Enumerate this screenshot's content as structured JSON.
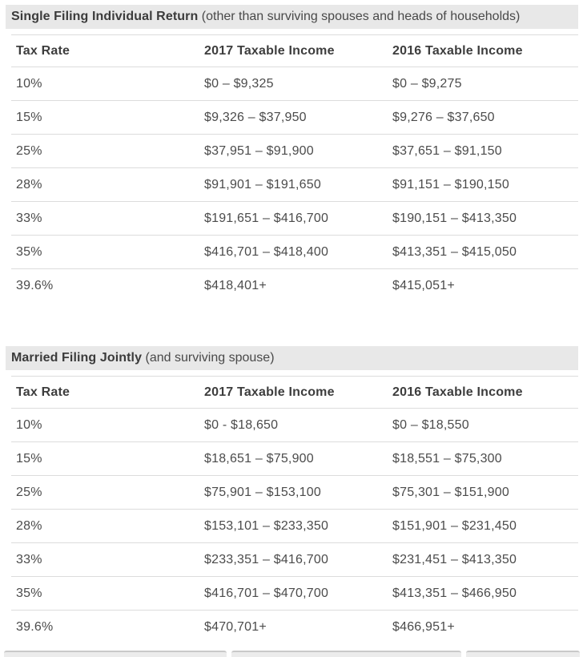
{
  "colors": {
    "band_bg": "#e8e8e8",
    "title_text": "#3b3b3b",
    "header_text": "#3d3d3d",
    "body_text": "#4b4b4b",
    "divider": "#dcdcdc",
    "bottom_box_bg": "#ececec",
    "bottom_box_border": "#c9c9c9"
  },
  "tables": [
    {
      "title_bold": "Single Filing Individual Return",
      "title_note": " (other than surviving spouses and heads of households)",
      "columns": {
        "rate": "Tax Rate",
        "y2017": "2017 Taxable Income",
        "y2016": "2016 Taxable Income"
      },
      "rows": [
        {
          "rate": "10%",
          "y2017": "$0 – $9,325",
          "y2016": "$0 – $9,275"
        },
        {
          "rate": "15%",
          "y2017": "$9,326 – $37,950",
          "y2016": "$9,276 – $37,650"
        },
        {
          "rate": "25%",
          "y2017": "$37,951 – $91,900",
          "y2016": "$37,651 – $91,150"
        },
        {
          "rate": "28%",
          "y2017": "$91,901 – $191,650",
          "y2016": "$91,151 – $190,150"
        },
        {
          "rate": "33%",
          "y2017": "$191,651 – $416,700",
          "y2016": "$190,151 – $413,350"
        },
        {
          "rate": "35%",
          "y2017": "$416,701 – $418,400",
          "y2016": "$413,351 – $415,050"
        },
        {
          "rate": "39.6%",
          "y2017": "$418,401+",
          "y2016": "$415,051+"
        }
      ]
    },
    {
      "title_bold": "Married Filing Jointly",
      "title_note": " (and surviving spouse)",
      "columns": {
        "rate": "Tax Rate",
        "y2017": "2017 Taxable Income",
        "y2016": "2016 Taxable Income"
      },
      "rows": [
        {
          "rate": "10%",
          "y2017": "$0 - $18,650",
          "y2016": "$0 – $18,550"
        },
        {
          "rate": "15%",
          "y2017": "$18,651 – $75,900",
          "y2016": "$18,551 – $75,300"
        },
        {
          "rate": "25%",
          "y2017": "$75,901 – $153,100",
          "y2016": "$75,301 – $151,900"
        },
        {
          "rate": "28%",
          "y2017": "$153,101 – $233,350",
          "y2016": "$151,901 – $231,450"
        },
        {
          "rate": "33%",
          "y2017": "$233,351 – $416,700",
          "y2016": "$231,451 – $413,350"
        },
        {
          "rate": "35%",
          "y2017": "$416,701 – $470,700",
          "y2016": "$413,351 – $466,950"
        },
        {
          "rate": "39.6%",
          "y2017": "$470,701+",
          "y2016": "$466,951+"
        }
      ]
    }
  ]
}
